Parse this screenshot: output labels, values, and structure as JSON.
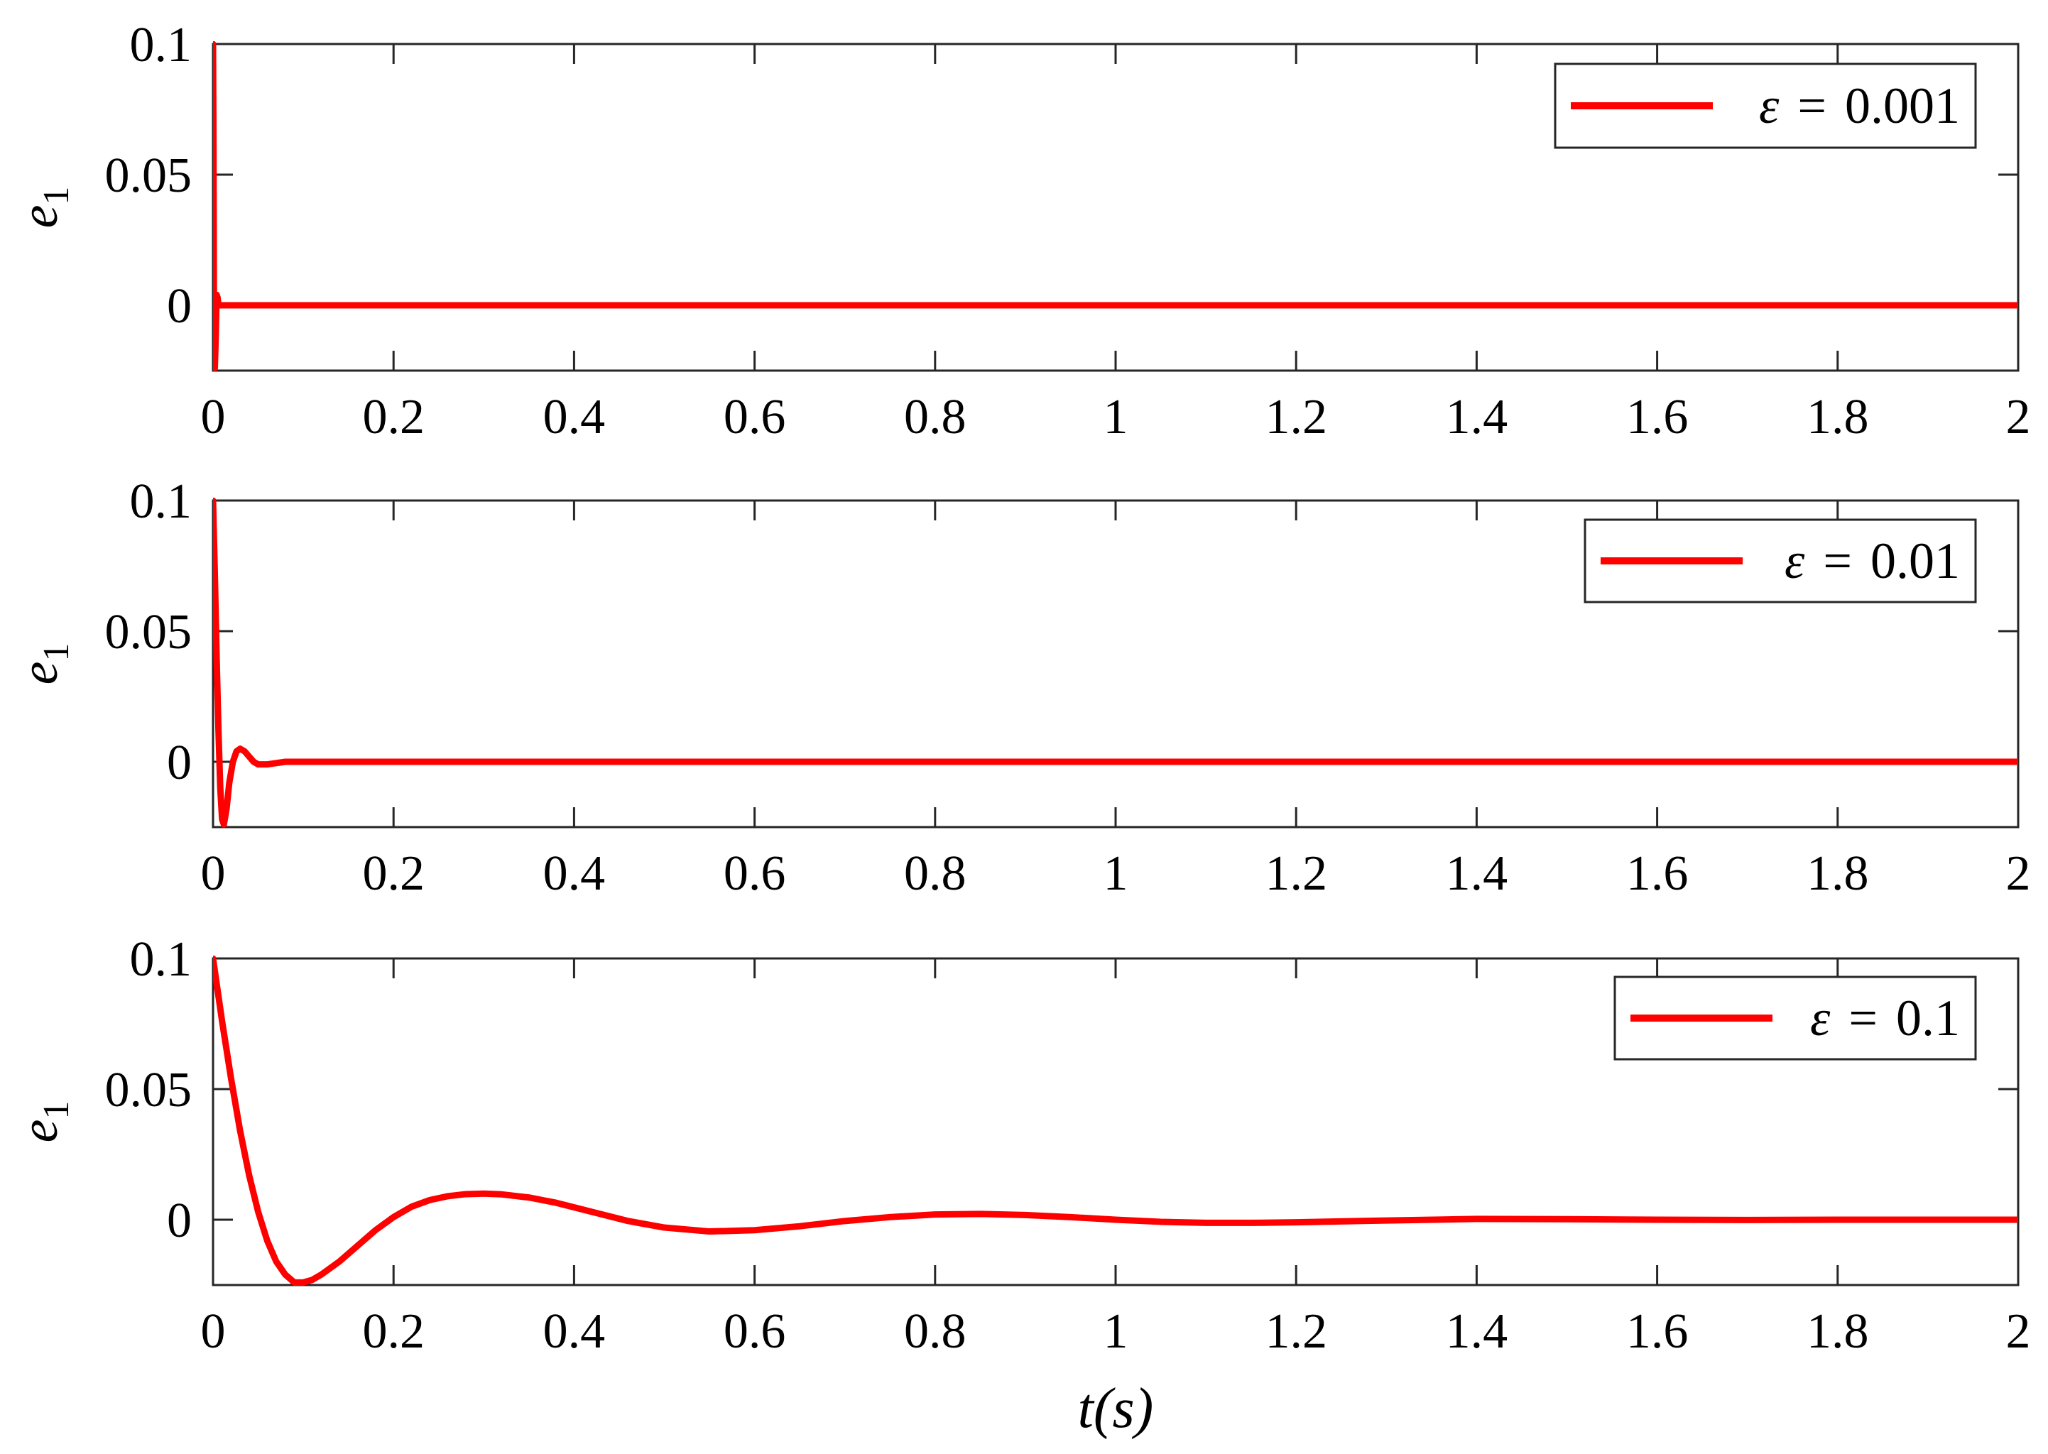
{
  "chart_data": [
    {
      "type": "line",
      "ylabel": "e",
      "ylabel_subscript": "1",
      "xlim": [
        0,
        2
      ],
      "ylim": [
        -0.025,
        0.1
      ],
      "x_ticks": [
        0,
        0.2,
        0.4,
        0.6,
        0.8,
        1,
        1.2,
        1.4,
        1.6,
        1.8,
        2
      ],
      "x_tick_labels": [
        "0",
        "0.2",
        "0.4",
        "0.6",
        "0.8",
        "1",
        "1.2",
        "1.4",
        "1.6",
        "1.8",
        "2"
      ],
      "y_ticks": [
        0,
        0.05,
        0.1
      ],
      "y_tick_labels": [
        "0",
        "0.05",
        "0.1"
      ],
      "grid": false,
      "legend": {
        "position": "top-right",
        "symbol": "ε",
        "relation": "=",
        "value": "0.001"
      },
      "series": [
        {
          "name": "ε = 0.001",
          "color": "#ff0000",
          "x": [
            0,
            0.0005,
            0.001,
            0.0015,
            0.002,
            0.003,
            0.004,
            0.005,
            0.006,
            0.008,
            0.01,
            0.1,
            0.5,
            1,
            1.5,
            2
          ],
          "y": [
            0.1,
            0.06,
            0.0,
            -0.022,
            -0.024,
            -0.012,
            0.004,
            0.003,
            0.0,
            0.0,
            0.0,
            0.0,
            0.0,
            0.0,
            0.0,
            0.0
          ]
        }
      ]
    },
    {
      "type": "line",
      "ylabel": "e",
      "ylabel_subscript": "1",
      "xlim": [
        0,
        2
      ],
      "ylim": [
        -0.025,
        0.1
      ],
      "x_ticks": [
        0,
        0.2,
        0.4,
        0.6,
        0.8,
        1,
        1.2,
        1.4,
        1.6,
        1.8,
        2
      ],
      "x_tick_labels": [
        "0",
        "0.2",
        "0.4",
        "0.6",
        "0.8",
        "1",
        "1.2",
        "1.4",
        "1.6",
        "1.8",
        "2"
      ],
      "y_ticks": [
        0,
        0.05,
        0.1
      ],
      "y_tick_labels": [
        "0",
        "0.05",
        "0.1"
      ],
      "grid": false,
      "legend": {
        "position": "top-right",
        "symbol": "ε",
        "relation": "=",
        "value": "0.01"
      },
      "series": [
        {
          "name": "ε = 0.01",
          "color": "#ff0000",
          "x": [
            0,
            0.002,
            0.004,
            0.006,
            0.008,
            0.01,
            0.012,
            0.015,
            0.018,
            0.022,
            0.026,
            0.03,
            0.035,
            0.04,
            0.045,
            0.05,
            0.06,
            0.07,
            0.08,
            0.1,
            0.15,
            0.3,
            1,
            2
          ],
          "y": [
            0.1,
            0.072,
            0.04,
            0.012,
            -0.01,
            -0.022,
            -0.024,
            -0.018,
            -0.008,
            0.0,
            0.004,
            0.005,
            0.004,
            0.002,
            0.0,
            -0.001,
            -0.001,
            -0.0005,
            0.0,
            0.0,
            0.0,
            0.0,
            0.0,
            0.0
          ]
        }
      ]
    },
    {
      "type": "line",
      "ylabel": "e",
      "ylabel_subscript": "1",
      "xlabel": "t(s)",
      "xlim": [
        0,
        2
      ],
      "ylim": [
        -0.025,
        0.1
      ],
      "x_ticks": [
        0,
        0.2,
        0.4,
        0.6,
        0.8,
        1,
        1.2,
        1.4,
        1.6,
        1.8,
        2
      ],
      "x_tick_labels": [
        "0",
        "0.2",
        "0.4",
        "0.6",
        "0.8",
        "1",
        "1.2",
        "1.4",
        "1.6",
        "1.8",
        "2"
      ],
      "y_ticks": [
        0,
        0.05,
        0.1
      ],
      "y_tick_labels": [
        "0",
        "0.05",
        "0.1"
      ],
      "grid": false,
      "legend": {
        "position": "top-right",
        "symbol": "ε",
        "relation": "=",
        "value": "0.1"
      },
      "series": [
        {
          "name": "ε = 0.1",
          "color": "#ff0000",
          "x": [
            0,
            0.01,
            0.02,
            0.03,
            0.04,
            0.05,
            0.06,
            0.07,
            0.08,
            0.09,
            0.1,
            0.11,
            0.12,
            0.14,
            0.16,
            0.18,
            0.2,
            0.22,
            0.24,
            0.26,
            0.28,
            0.3,
            0.32,
            0.35,
            0.38,
            0.42,
            0.46,
            0.5,
            0.55,
            0.6,
            0.65,
            0.7,
            0.75,
            0.8,
            0.85,
            0.9,
            0.95,
            1.0,
            1.05,
            1.1,
            1.15,
            1.2,
            1.3,
            1.4,
            1.5,
            1.6,
            1.7,
            1.8,
            1.9,
            2.0
          ],
          "y": [
            0.1,
            0.076,
            0.054,
            0.034,
            0.017,
            0.003,
            -0.008,
            -0.016,
            -0.021,
            -0.024,
            -0.024,
            -0.023,
            -0.021,
            -0.016,
            -0.01,
            -0.004,
            0.001,
            0.005,
            0.0075,
            0.009,
            0.0098,
            0.01,
            0.0097,
            0.0085,
            0.0065,
            0.003,
            -0.0005,
            -0.003,
            -0.0045,
            -0.004,
            -0.0025,
            -0.0005,
            0.001,
            0.002,
            0.0022,
            0.0018,
            0.001,
            0.0,
            -0.0008,
            -0.0012,
            -0.0012,
            -0.001,
            -0.0003,
            0.0003,
            0.0002,
            0.0,
            -0.0001,
            0.0,
            0.0,
            0.0
          ]
        }
      ]
    }
  ]
}
